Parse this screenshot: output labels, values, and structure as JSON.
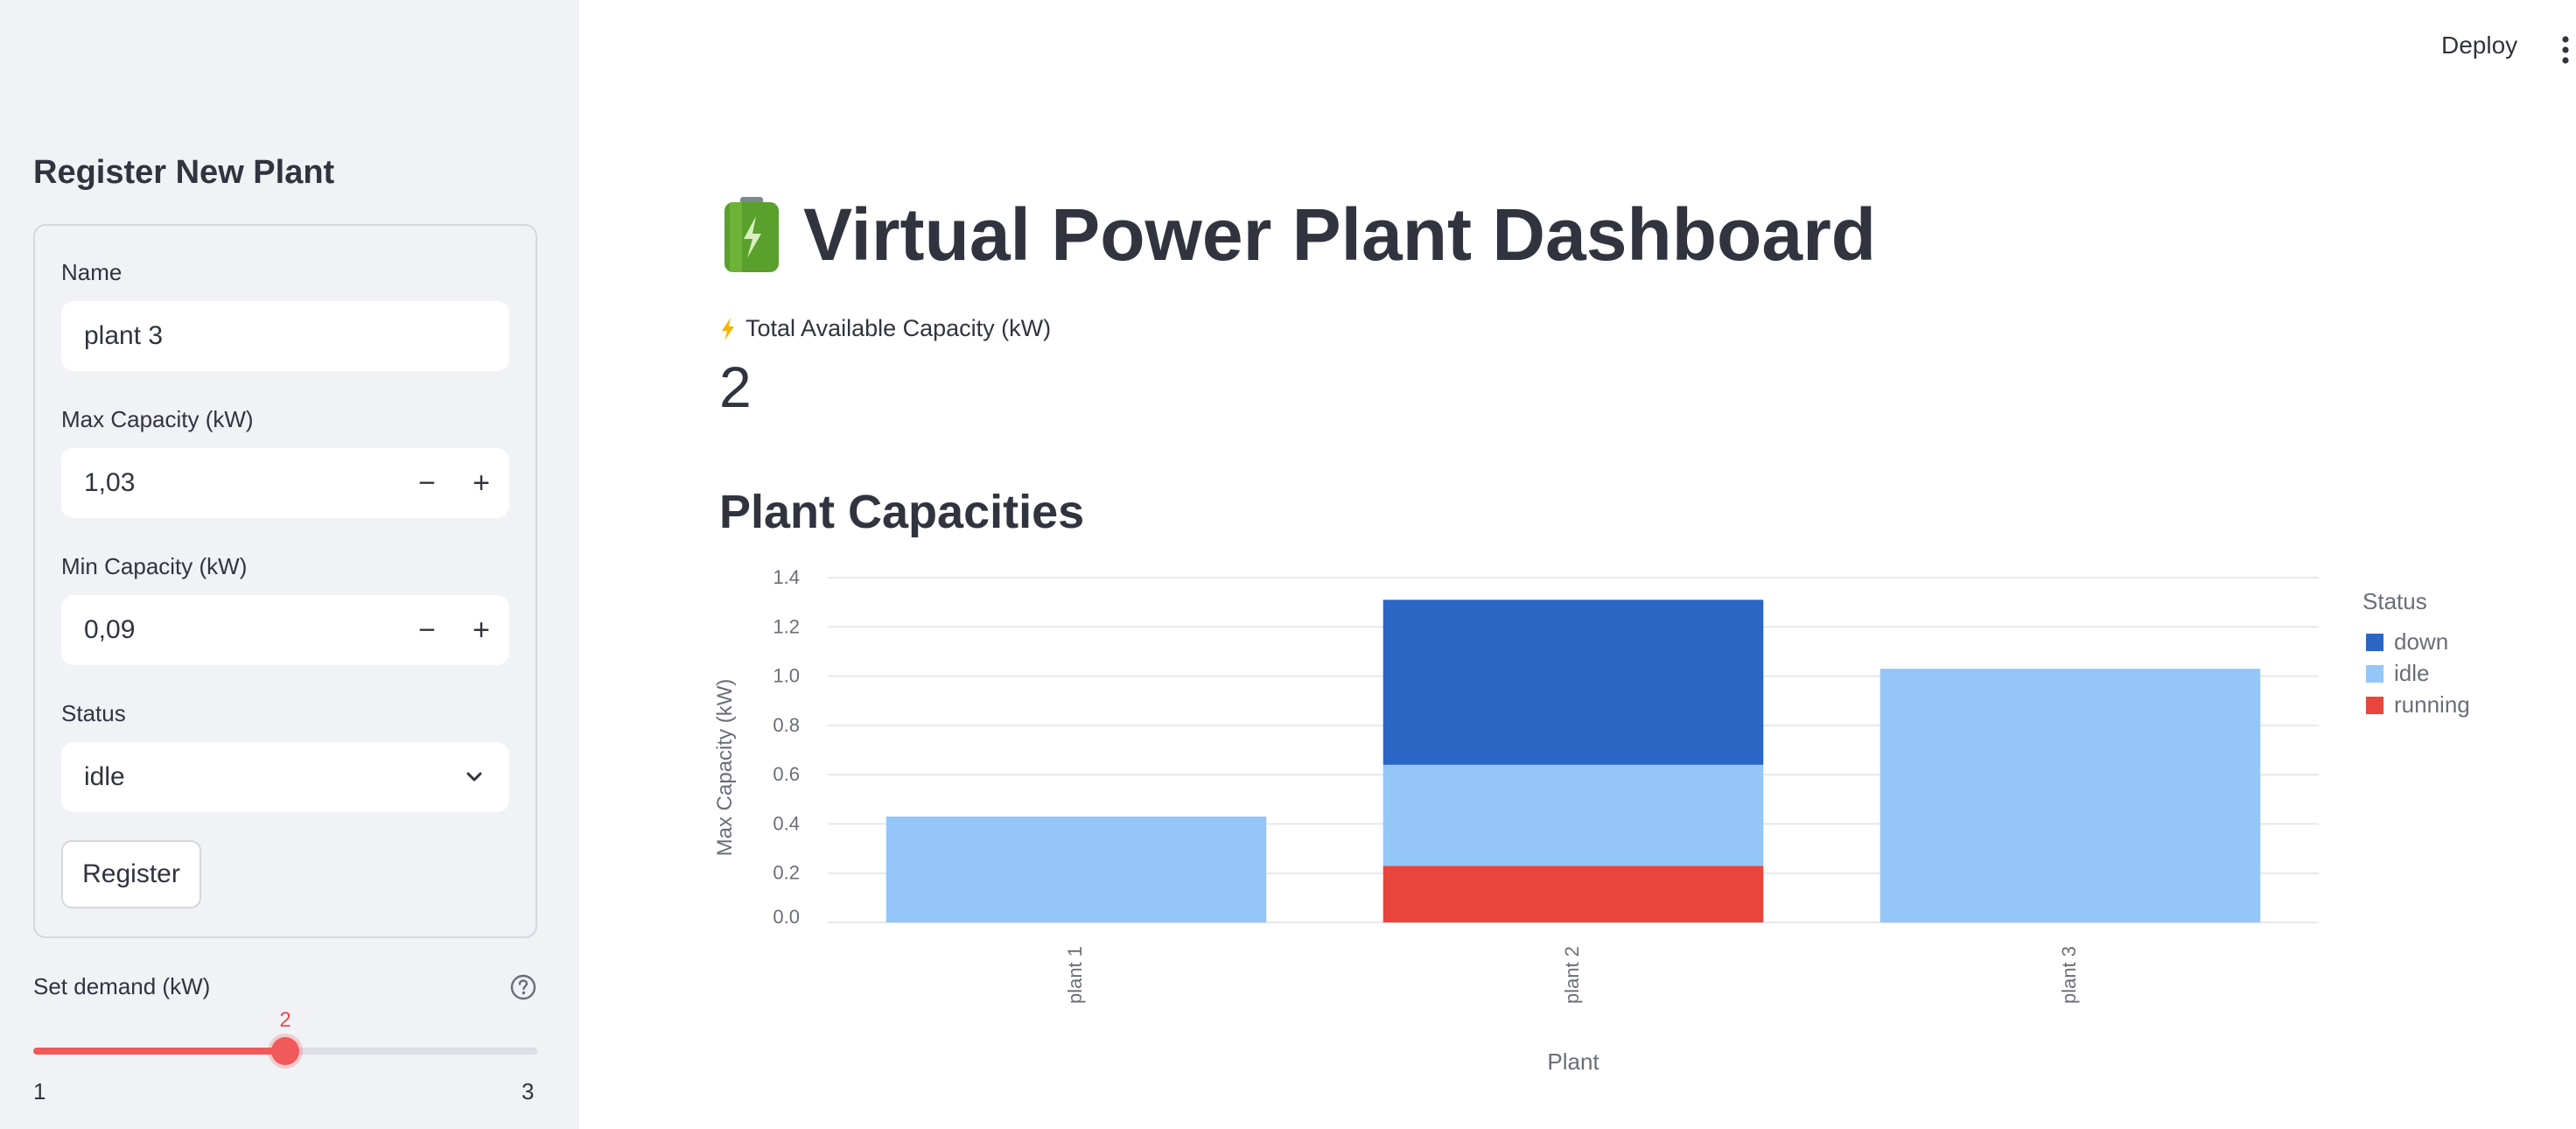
{
  "sidebar": {
    "title": "Register New Plant",
    "form": {
      "name_label": "Name",
      "name_value": "plant 3",
      "max_label": "Max Capacity (kW)",
      "max_value": "1,03",
      "min_label": "Min Capacity (kW)",
      "min_value": "0,09",
      "status_label": "Status",
      "status_value": "idle",
      "decrement": "−",
      "increment": "+",
      "register_label": "Register"
    },
    "demand": {
      "label": "Set demand (kW)",
      "value": 2,
      "value_text": "2",
      "min": 1,
      "max": 3,
      "min_text": "1",
      "max_text": "3"
    }
  },
  "header": {
    "deploy_label": "Deploy"
  },
  "main": {
    "title": "Virtual Power Plant Dashboard",
    "metric_label": "Total Available Capacity (kW)",
    "metric_value": "2",
    "section_title": "Plant Capacities"
  },
  "colors": {
    "down": "#2c66c4",
    "idle": "#94c6f7",
    "running": "#e8453c",
    "accent": "#f05a5a"
  },
  "icons": [
    "battery-icon",
    "lightning-icon",
    "help-icon",
    "chevron-down-icon",
    "menu-dots-icon"
  ],
  "chart_data": {
    "type": "bar",
    "stacked": true,
    "categories": [
      "plant 1",
      "plant 2",
      "plant 3"
    ],
    "series": [
      {
        "name": "running",
        "values": [
          0,
          0.23,
          0
        ]
      },
      {
        "name": "idle",
        "values": [
          0.43,
          0.41,
          1.03
        ]
      },
      {
        "name": "down",
        "values": [
          0,
          0.67,
          0
        ]
      }
    ],
    "xlabel": "Plant",
    "ylabel": "Max Capacity (kW)",
    "ylim": [
      0,
      1.4
    ],
    "yticks": [
      "0.0",
      "0.2",
      "0.4",
      "0.6",
      "0.8",
      "1.0",
      "1.2",
      "1.4"
    ],
    "legend_title": "Status",
    "legend_order": [
      "down",
      "idle",
      "running"
    ],
    "legend_position": "right",
    "grid": true
  }
}
